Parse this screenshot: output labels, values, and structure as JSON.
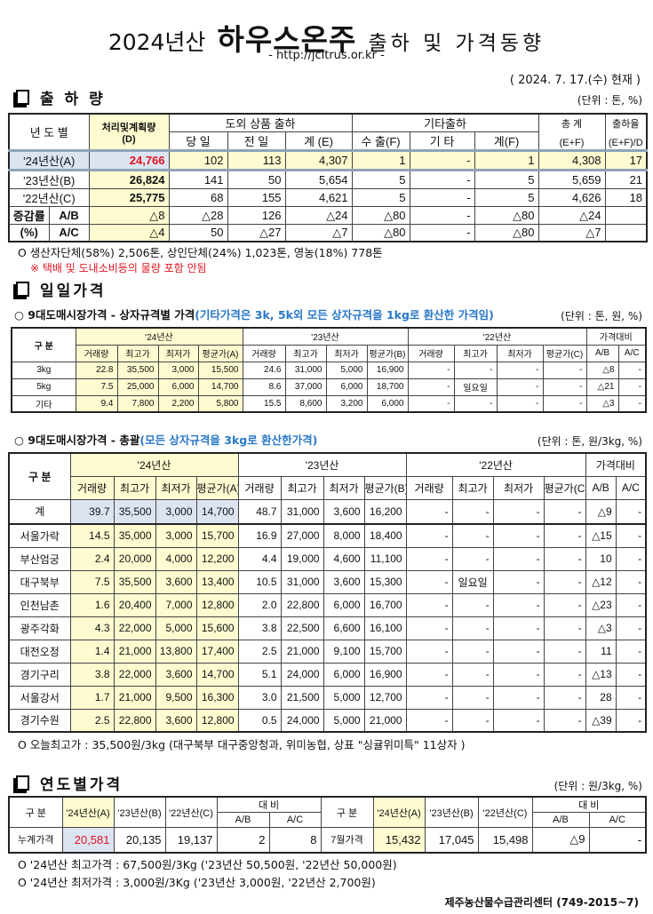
{
  "title": {
    "prefix": "2024년산",
    "main": "하우스온주",
    "suffix": "출하 및 가격동향",
    "url": "- http://jcitrus.or.kr -"
  },
  "date": "( 2024. 7. 17.(수) 현재 )",
  "shipment": {
    "heading": "출 하 량",
    "unit": "(단위 : 톤, %)",
    "headers": {
      "year": "년 도 별",
      "plan": "처리및계획량",
      "plan_code": "(D)",
      "domestic": "도외 상품 출하",
      "other": "기타출하",
      "total": "총  계",
      "total_code": "(E+F)",
      "rate": "출하율",
      "rate_code": "(E+F)/D",
      "sub": [
        "당 일",
        "전 일",
        "계 (E)",
        "수 출(F)",
        "기 타",
        "계(F)"
      ]
    },
    "rows": [
      {
        "label": "'24년산(A)",
        "cells": [
          "24,766",
          "102",
          "113",
          "4,307",
          "1",
          "-",
          "1",
          "4,308",
          "17"
        ]
      },
      {
        "label": "'23년산(B)",
        "cells": [
          "26,824",
          "141",
          "50",
          "5,654",
          "5",
          "-",
          "5",
          "5,659",
          "21"
        ]
      },
      {
        "label": "'22년산(C)",
        "cells": [
          "25,775",
          "68",
          "155",
          "4,621",
          "5",
          "-",
          "5",
          "4,626",
          "18"
        ]
      }
    ],
    "change_label": "증감률",
    "change_unit": "(%)",
    "change_rows": [
      {
        "label": "A/B",
        "cells": [
          "△8",
          "△28",
          "126",
          "△24",
          "△80",
          "-",
          "△80",
          "△24",
          ""
        ]
      },
      {
        "label": "A/C",
        "cells": [
          "△4",
          "50",
          "△27",
          "△7",
          "△80",
          "-",
          "△80",
          "△7",
          ""
        ]
      }
    ],
    "note": "O  생산자단체(58%) 2,506톤, 상인단체(24%) 1,023톤, 영농(18%) 778톤",
    "warning": "※ 택배 및 도내소비등의 물량 포함 안됨"
  },
  "daily": {
    "heading": "일일가격",
    "by_size": {
      "title": "○ 9대도매시장가격 - 상자규격별 가격",
      "title_note": "(기타가격은 3k, 5k외 모든 상자규격을 1kg로 환산한 가격임)",
      "unit": "(단위 : 톤, 원, %)",
      "headers": {
        "group": "구  분",
        "y24": "'24년산",
        "y23": "'23년산",
        "y22": "'22년산",
        "compare": "가격대비",
        "sub": [
          "거래량",
          "최고가",
          "최저가",
          "평균가(A)",
          "거래량",
          "최고가",
          "최저가",
          "평균가(B)",
          "거래량",
          "최고가",
          "최저가",
          "평균가(C)",
          "A/B",
          "A/C"
        ]
      },
      "rows": [
        {
          "label": "3kg",
          "cells": [
            "22.8",
            "35,500",
            "3,000",
            "15,500",
            "24.6",
            "31,000",
            "5,000",
            "16,900",
            "-",
            "-",
            "-",
            "-",
            "△8",
            "-"
          ]
        },
        {
          "label": "5kg",
          "cells": [
            "7.5",
            "25,000",
            "6,000",
            "14,700",
            "8.6",
            "37,000",
            "6,000",
            "18,700",
            "-",
            "일요일",
            "-",
            "-",
            "△21",
            "-"
          ]
        },
        {
          "label": "기타",
          "cells": [
            "9.4",
            "7,800",
            "2,200",
            "5,800",
            "15.5",
            "8,600",
            "3,200",
            "6,000",
            "-",
            "-",
            "-",
            "-",
            "△3",
            "-"
          ]
        }
      ]
    },
    "overall": {
      "title": "○ 9대도매시장가격 - 총괄",
      "title_note": "(모든 상자규격을 3kg로 환산한가격)",
      "unit": "(단위 : 톤, 원/3kg, %)",
      "headers": {
        "group": "구  분",
        "y24": "'24년산",
        "y23": "'23년산",
        "y22": "'22년산",
        "compare": "가격대비",
        "sub": [
          "거래량",
          "최고가",
          "최저가",
          "평균가(A)",
          "거래량",
          "최고가",
          "최저가",
          "평균가(B)",
          "거래량",
          "최고가",
          "최저가",
          "평균가(C)",
          "A/B",
          "A/C"
        ]
      },
      "rows": [
        {
          "label": "계",
          "cells": [
            "39.7",
            "35,500",
            "3,000",
            "14,700",
            "48.7",
            "31,000",
            "3,600",
            "16,200",
            "-",
            "-",
            "-",
            "-",
            "△9",
            "-"
          ]
        },
        {
          "label": "서울가락",
          "cells": [
            "14.5",
            "35,000",
            "3,000",
            "15,700",
            "16.9",
            "27,000",
            "8,000",
            "18,400",
            "-",
            "-",
            "-",
            "-",
            "△15",
            "-"
          ]
        },
        {
          "label": "부산엄궁",
          "cells": [
            "2.4",
            "20,000",
            "4,000",
            "12,200",
            "4.4",
            "19,000",
            "4,600",
            "11,100",
            "-",
            "-",
            "-",
            "-",
            "10",
            "-"
          ]
        },
        {
          "label": "대구북부",
          "cells": [
            "7.5",
            "35,500",
            "3,600",
            "13,400",
            "10.5",
            "31,000",
            "3,600",
            "15,300",
            "-",
            "일요일",
            "-",
            "-",
            "△12",
            "-"
          ]
        },
        {
          "label": "인천남촌",
          "cells": [
            "1.6",
            "20,400",
            "7,000",
            "12,800",
            "2.0",
            "22,800",
            "6,000",
            "16,700",
            "-",
            "-",
            "-",
            "-",
            "△23",
            "-"
          ]
        },
        {
          "label": "광주각화",
          "cells": [
            "4.3",
            "22,000",
            "5,000",
            "15,600",
            "3.8",
            "22,500",
            "6,600",
            "16,100",
            "-",
            "-",
            "-",
            "-",
            "△3",
            "-"
          ]
        },
        {
          "label": "대전오정",
          "cells": [
            "1.4",
            "21,000",
            "13,800",
            "17,400",
            "2.5",
            "21,000",
            "9,100",
            "15,700",
            "-",
            "-",
            "-",
            "-",
            "11",
            "-"
          ]
        },
        {
          "label": "경기구리",
          "cells": [
            "3.8",
            "22,000",
            "3,600",
            "14,700",
            "5.1",
            "24,000",
            "6,000",
            "16,900",
            "-",
            "-",
            "-",
            "-",
            "△13",
            "-"
          ]
        },
        {
          "label": "서울강서",
          "cells": [
            "1.7",
            "21,000",
            "9,500",
            "16,300",
            "3.0",
            "21,500",
            "5,000",
            "12,700",
            "-",
            "-",
            "-",
            "-",
            "28",
            "-"
          ]
        },
        {
          "label": "경기수원",
          "cells": [
            "2.5",
            "22,800",
            "3,600",
            "12,800",
            "0.5",
            "24,000",
            "5,000",
            "21,000",
            "-",
            "-",
            "-",
            "-",
            "△39",
            "-"
          ]
        }
      ],
      "note": "O  오늘최고가 : 35,500원/3kg (대구북부  대구중앙청과,  위미농협,  상표 \"싱귤위미특\"  11상자 )"
    }
  },
  "yearly": {
    "heading": "연도별가격",
    "unit": "(단위 : 원/3kg, %)",
    "headers": {
      "group": "구   분",
      "y24": "'24년산(A)",
      "y23": "'23년산(B)",
      "y22": "'22년산(C)",
      "compare": "대      비",
      "ab": "A/B",
      "ac": "A/C"
    },
    "left": {
      "label": "누계가격",
      "cells": [
        "20,581",
        "20,135",
        "19,137",
        "2",
        "8"
      ]
    },
    "right": {
      "label": "7월가격",
      "cells": [
        "15,432",
        "17,045",
        "15,498",
        "△9",
        "-"
      ]
    },
    "notes": [
      "O  '24년산 최고가격 : 67,500원/3Kg ('23년산 50,500원, '22년산 50,000원)",
      "O  '24년산 최저가격 :   3,000원/3Kg ('23년산   3,000원, '22년산  2,700원)"
    ]
  },
  "footer": "제주농산물수급관리센터 (749-2015~7)",
  "colors": {
    "highlight_yellow": "#fffbd0",
    "highlight_blue": "#dce4f2",
    "accent_red": "#e0141e",
    "note_blue": "#2878c8"
  }
}
